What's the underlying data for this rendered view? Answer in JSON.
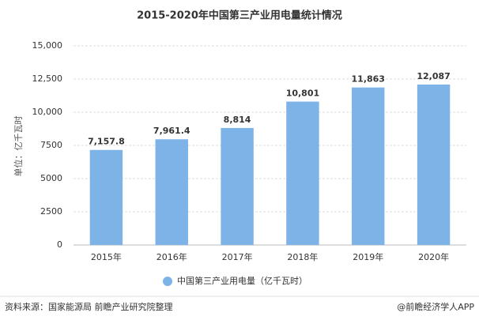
{
  "chart_data": {
    "type": "bar",
    "title": "2015-2020年中国第三产业用电量统计情况",
    "y_label": "单位：亿千瓦时",
    "categories": [
      "2015年",
      "2016年",
      "2017年",
      "2018年",
      "2019年",
      "2020年"
    ],
    "series": [
      {
        "name": "中国第三产业用电量（亿千瓦时）",
        "color": "#7eb3e8",
        "values": [
          7157.8,
          7961.4,
          8814,
          10801,
          11863,
          12087
        ],
        "value_labels": [
          "7,157.8",
          "7,961.4",
          "8,814",
          "10,801",
          "11,863",
          "12,087"
        ]
      }
    ],
    "ylim": [
      0,
      15000
    ],
    "yticks": [
      0,
      2500,
      5000,
      7500,
      {
        "value": 10000,
        "label": "10,000"
      },
      {
        "value": 12500,
        "label": "12,500"
      },
      {
        "value": 15000,
        "label": "15,000"
      }
    ],
    "grid": true,
    "legend": "bottom"
  },
  "footer": {
    "source": "资料来源：国家能源局 前瞻产业研究院整理",
    "credit": "@前瞻经济学人APP"
  }
}
